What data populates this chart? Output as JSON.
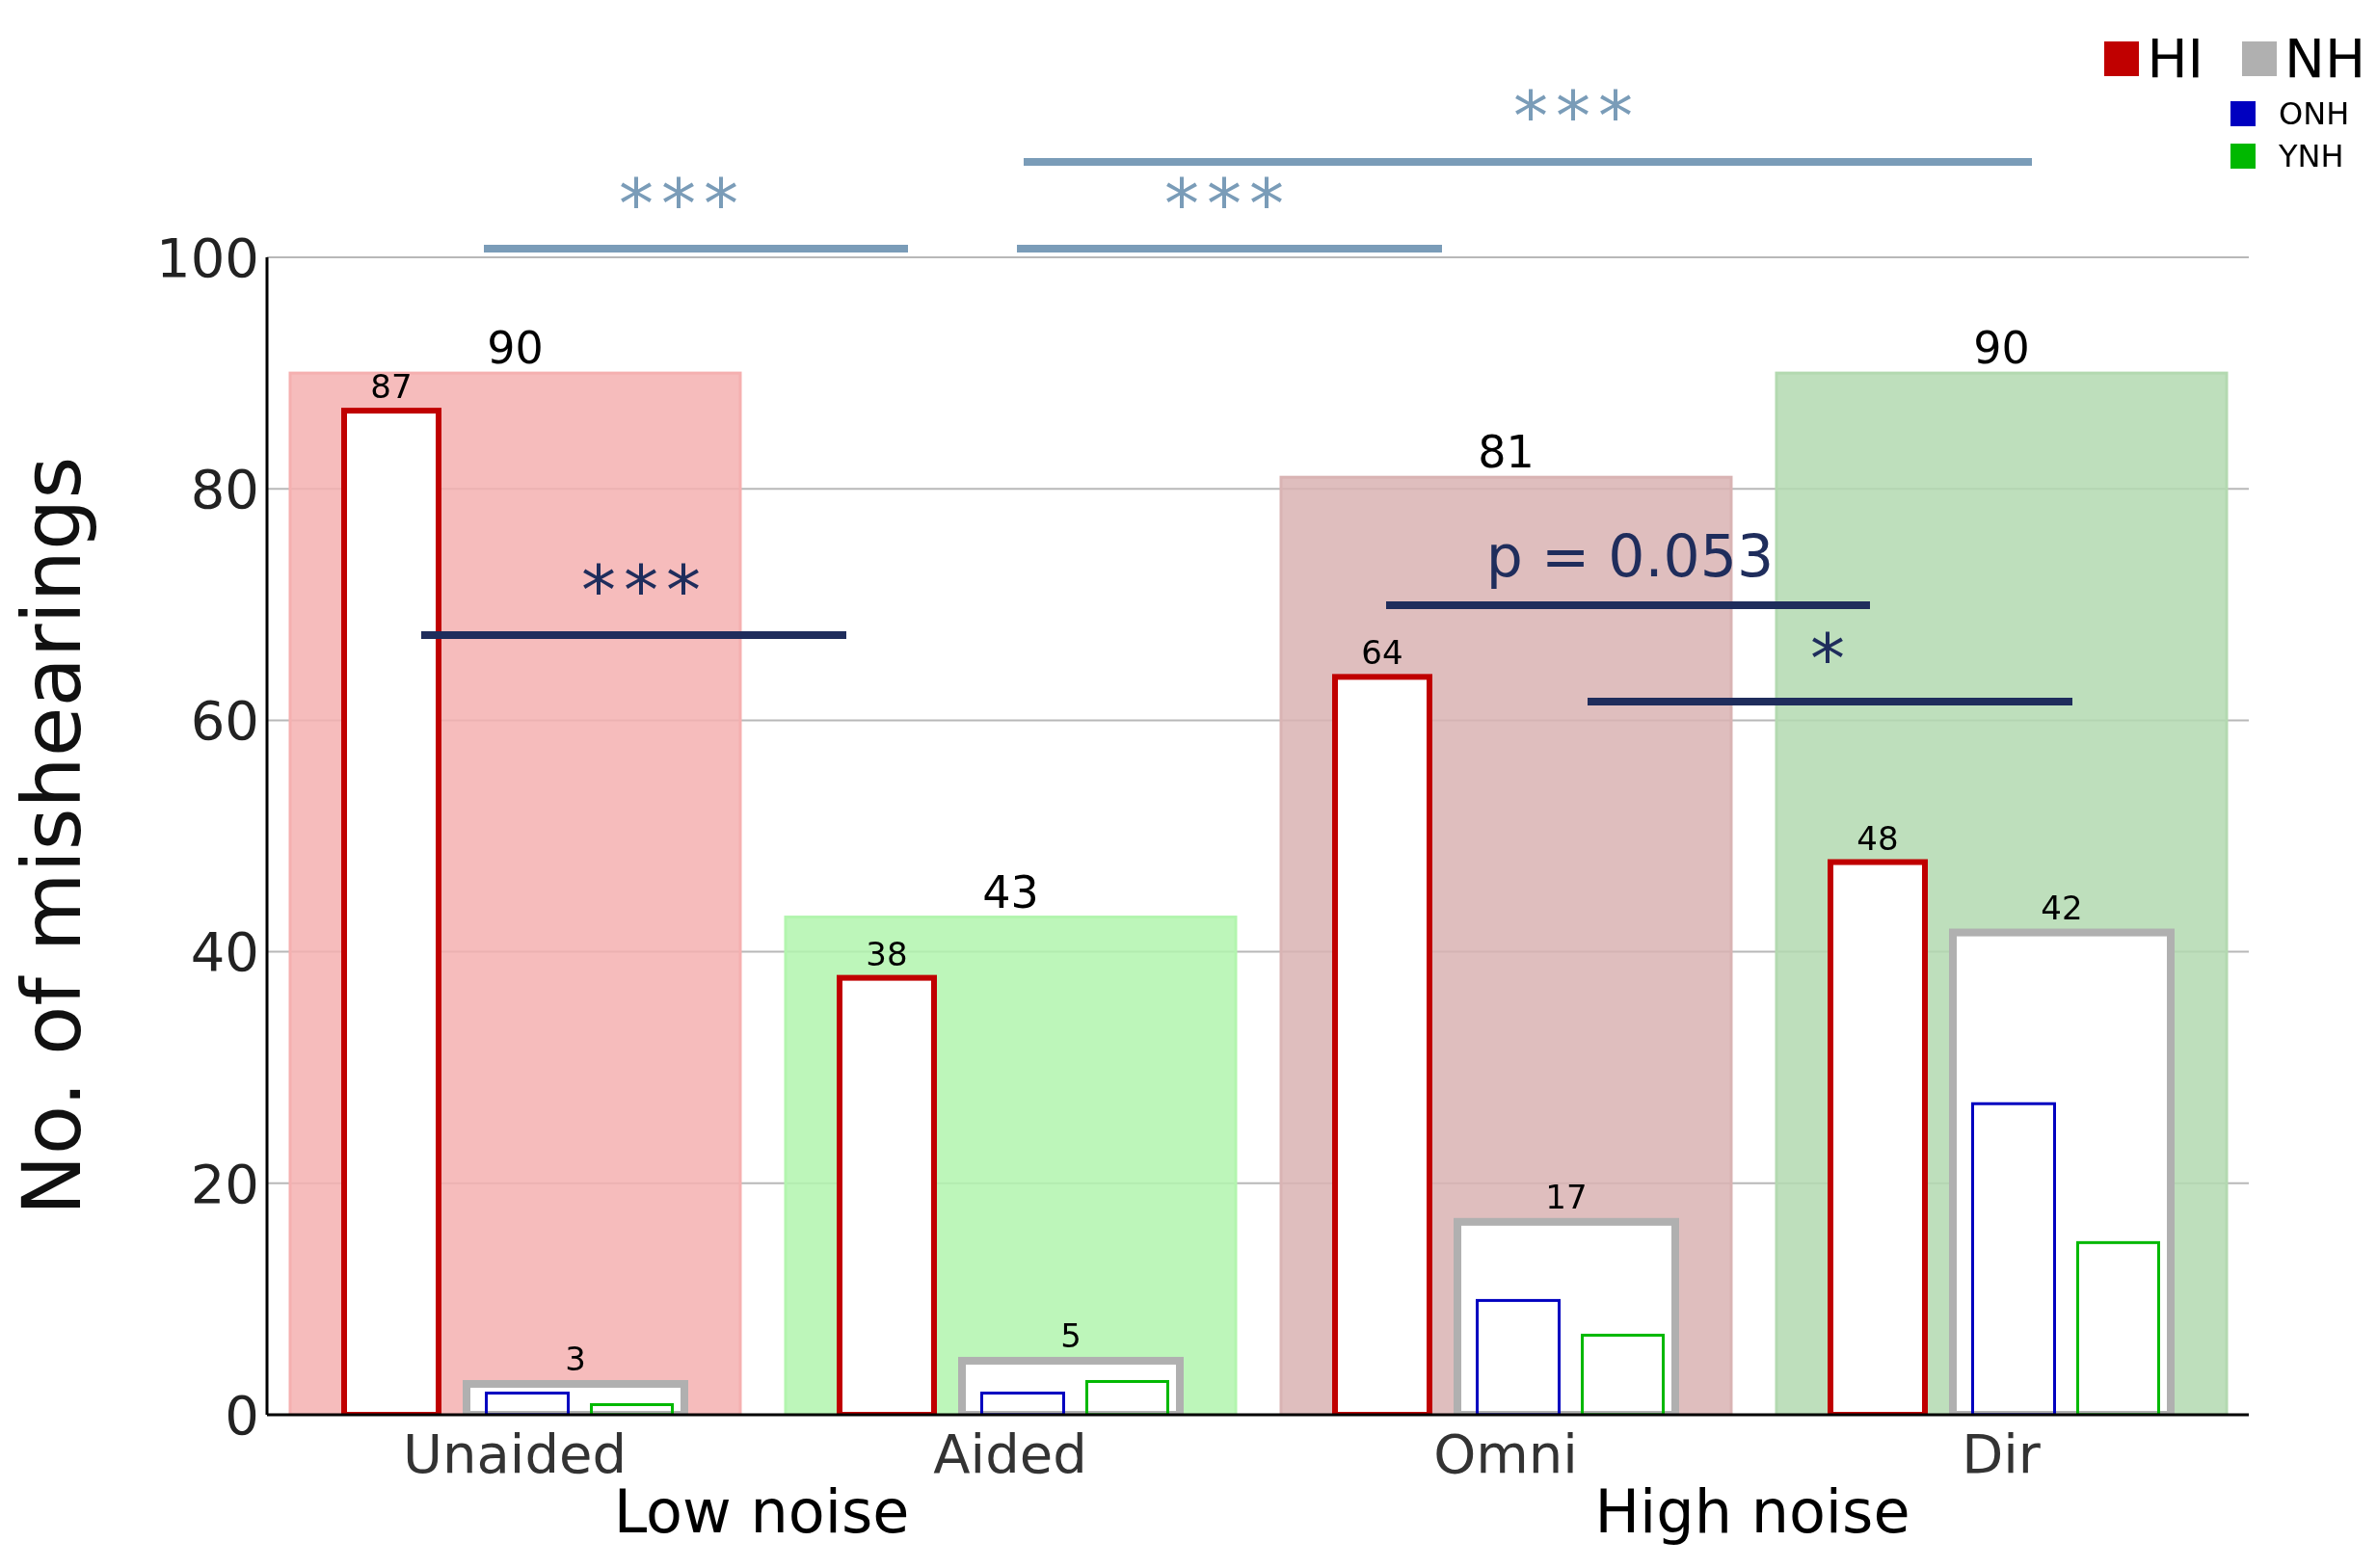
{
  "chart_data": {
    "type": "bar",
    "ylabel": "No. of mishearings",
    "categories": [
      "Unaided",
      "Aided",
      "Omni",
      "Dir"
    ],
    "series": [
      {
        "colors": [
          "#f5b0b0",
          "#b2f5ae",
          "#d9b3b3",
          "#b3d9b0"
        ],
        "values": [
          90,
          43,
          81,
          90
        ],
        "value_labels": [
          "90",
          "43",
          "81",
          "90"
        ]
      },
      {
        "name": "HI",
        "color": "#c00000",
        "values": [
          87,
          38,
          64,
          48
        ],
        "value_labels": [
          "87",
          "38",
          "64",
          "48"
        ]
      },
      {
        "name": "NH",
        "color": "#b0b0b0",
        "values": [
          3,
          5,
          17,
          42
        ],
        "value_labels": [
          "3",
          "5",
          "17",
          "42"
        ]
      },
      {
        "name": "ONH",
        "color": "#0000c0",
        "values": [
          2,
          2,
          10,
          27
        ]
      },
      {
        "name": "YNH",
        "color": "#00b800",
        "values": [
          1,
          3,
          7,
          15
        ]
      }
    ],
    "ylim": [
      0,
      100
    ],
    "yticks": [
      0,
      20,
      40,
      60,
      80,
      100
    ],
    "grid": "y",
    "legend": "top right",
    "annotations": [
      "***",
      "***",
      "***",
      "***",
      "p = 0.053",
      "*",
      "Low noise",
      "High noise"
    ]
  }
}
